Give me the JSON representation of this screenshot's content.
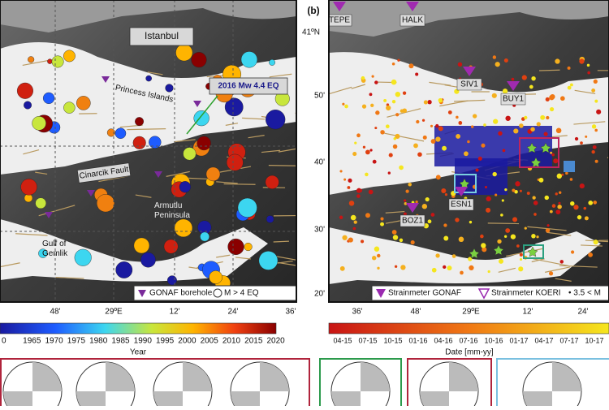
{
  "left_map": {
    "labels": {
      "city": "Istanbul",
      "event": "2016 Mw 4.4 EQ",
      "islands": "Princess Islands",
      "fault": "Cinarcik Fault",
      "peninsula": "Armutlu Peninsula",
      "gulf": "Gulf of Gemlik"
    },
    "legend": [
      "GONAF borehole",
      "M > 4 EQ"
    ],
    "x_ticks": [
      "48'",
      "29ºE",
      "12'",
      "24'",
      "36'"
    ],
    "colorbar": {
      "ticks": [
        "0",
        "1965",
        "1970",
        "1975",
        "1980",
        "1985",
        "1990",
        "1995",
        "2000",
        "2005",
        "2010",
        "2015",
        "2020"
      ],
      "title": "Year"
    }
  },
  "right_map": {
    "panel_label": "(b)",
    "stations": [
      "TEPE",
      "HALK",
      "SIV1",
      "BUY1",
      "ESN1",
      "BOZ1"
    ],
    "lat_ticks": [
      "41ºN",
      "50'",
      "40'",
      "30'",
      "20'"
    ],
    "x_ticks": [
      "36'",
      "48'",
      "29ºE",
      "12'",
      "24'"
    ],
    "legend": [
      "Strainmeter GONAF",
      "Strainmeter KOERI",
      "• 3.5 < M"
    ],
    "colorbar": {
      "ticks": [
        "04-15",
        "07-15",
        "10-15",
        "01-16",
        "04-16",
        "07-16",
        "10-16",
        "01-17",
        "04-17",
        "07-17",
        "10-17"
      ],
      "title": "Date [mm-yy]"
    }
  }
}
